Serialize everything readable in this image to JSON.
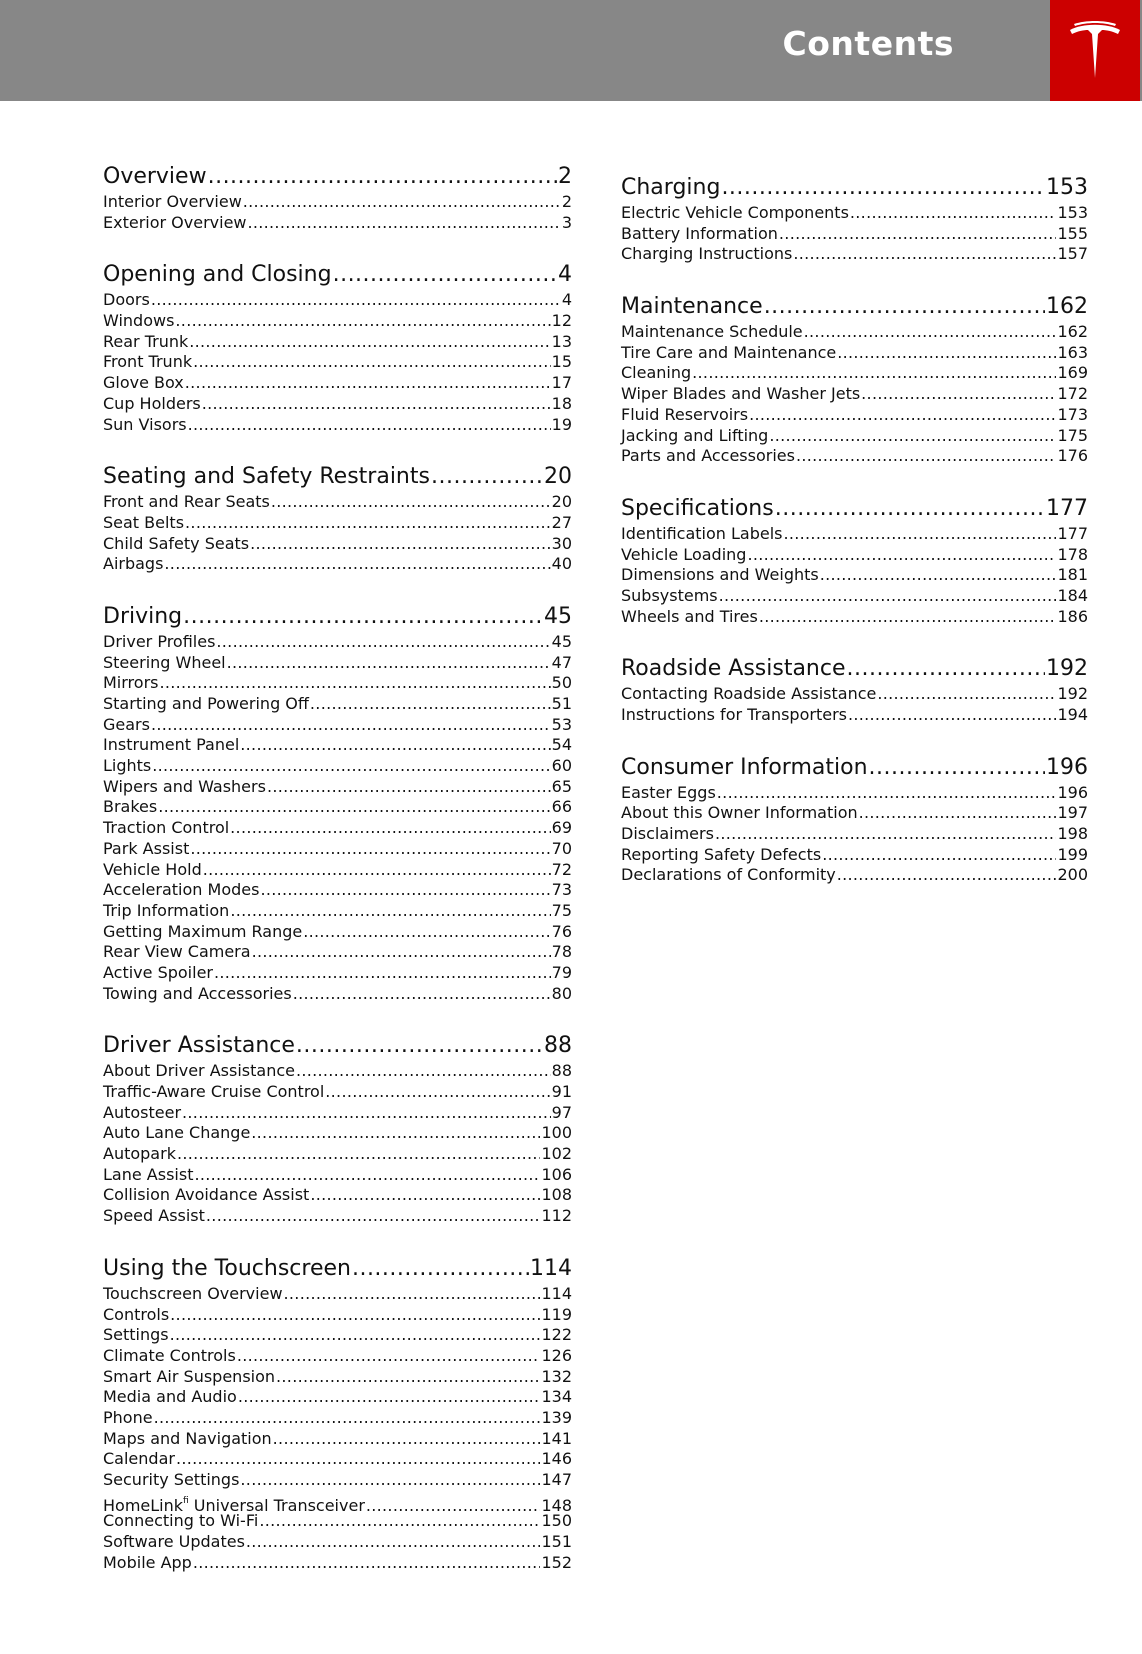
{
  "header": {
    "title": "Contents",
    "logo": "Tesla",
    "accent": "#cc0000",
    "bar_color": "#878787"
  },
  "columns": [
    [
      {
        "title": "Overview",
        "page": "2",
        "entries": [
          {
            "label": "Interior Overview",
            "page": "2"
          },
          {
            "label": "Exterior Overview",
            "page": "3"
          }
        ]
      },
      {
        "title": "Opening and Closing",
        "page": "4",
        "entries": [
          {
            "label": "Doors",
            "page": "4"
          },
          {
            "label": "Windows",
            "page": "12"
          },
          {
            "label": "Rear Trunk",
            "page": "13"
          },
          {
            "label": "Front Trunk",
            "page": "15"
          },
          {
            "label": "Glove Box",
            "page": "17"
          },
          {
            "label": "Cup Holders",
            "page": "18"
          },
          {
            "label": "Sun Visors",
            "page": "19"
          }
        ]
      },
      {
        "title": "Seating and Safety Restraints",
        "page": "20",
        "entries": [
          {
            "label": "Front and Rear Seats",
            "page": "20"
          },
          {
            "label": "Seat Belts",
            "page": "27"
          },
          {
            "label": "Child Safety Seats",
            "page": "30"
          },
          {
            "label": "Airbags",
            "page": "40"
          }
        ]
      },
      {
        "title": "Driving",
        "page": "45",
        "entries": [
          {
            "label": "Driver Profiles",
            "page": "45"
          },
          {
            "label": "Steering Wheel",
            "page": "47"
          },
          {
            "label": "Mirrors",
            "page": "50"
          },
          {
            "label": "Starting and Powering Off",
            "page": "51"
          },
          {
            "label": "Gears",
            "page": "53"
          },
          {
            "label": "Instrument Panel",
            "page": "54"
          },
          {
            "label": "Lights",
            "page": "60"
          },
          {
            "label": "Wipers and Washers",
            "page": "65"
          },
          {
            "label": "Brakes",
            "page": "66"
          },
          {
            "label": "Traction Control",
            "page": "69"
          },
          {
            "label": "Park Assist",
            "page": "70"
          },
          {
            "label": "Vehicle Hold",
            "page": "72"
          },
          {
            "label": "Acceleration Modes",
            "page": "73"
          },
          {
            "label": "Trip Information",
            "page": "75"
          },
          {
            "label": "Getting Maximum Range",
            "page": "76"
          },
          {
            "label": "Rear View Camera",
            "page": "78"
          },
          {
            "label": "Active Spoiler",
            "page": "79"
          },
          {
            "label": "Towing and Accessories",
            "page": "80"
          }
        ]
      },
      {
        "title": "Driver Assistance",
        "page": "88",
        "entries": [
          {
            "label": "About Driver Assistance",
            "page": "88"
          },
          {
            "label": "Traffic-Aware Cruise Control",
            "page": "91"
          },
          {
            "label": "Autosteer",
            "page": "97"
          },
          {
            "label": "Auto Lane Change",
            "page": "100"
          },
          {
            "label": "Autopark",
            "page": "102"
          },
          {
            "label": "Lane Assist",
            "page": "106"
          },
          {
            "label": "Collision Avoidance Assist",
            "page": "108"
          },
          {
            "label": "Speed Assist",
            "page": "112"
          }
        ]
      },
      {
        "title": "Using the Touchscreen",
        "page": "114",
        "entries": [
          {
            "label": "Touchscreen Overview",
            "page": "114"
          },
          {
            "label": "Controls",
            "page": "119"
          },
          {
            "label": "Settings",
            "page": "122"
          },
          {
            "label": "Climate Controls",
            "page": "126"
          },
          {
            "label": "Smart Air Suspension",
            "page": "132"
          },
          {
            "label": "Media and Audio",
            "page": "134"
          },
          {
            "label": "Phone",
            "page": "139"
          },
          {
            "label": "Maps and Navigation",
            "page": "141"
          },
          {
            "label": "Calendar",
            "page": "146"
          },
          {
            "label": "Security Settings",
            "page": "147"
          },
          {
            "label": "HomeLink",
            "sup": "fi",
            "suffix": " Universal Transceiver",
            "page": "148"
          },
          {
            "label": "Connecting to Wi-Fi",
            "page": "150"
          },
          {
            "label": "Software Updates",
            "page": "151"
          },
          {
            "label": "Mobile App",
            "page": "152"
          }
        ]
      }
    ],
    [
      {
        "title": "Charging",
        "page": "153",
        "entries": [
          {
            "label": "Electric Vehicle Components",
            "page": "153"
          },
          {
            "label": "Battery Information",
            "page": "155"
          },
          {
            "label": "Charging Instructions",
            "page": "157"
          }
        ]
      },
      {
        "title": "Maintenance",
        "page": "162",
        "entries": [
          {
            "label": "Maintenance Schedule",
            "page": "162"
          },
          {
            "label": "Tire Care and Maintenance",
            "page": "163"
          },
          {
            "label": "Cleaning",
            "page": "169"
          },
          {
            "label": "Wiper Blades and Washer Jets",
            "page": "172"
          },
          {
            "label": "Fluid Reservoirs",
            "page": "173"
          },
          {
            "label": "Jacking and Lifting",
            "page": "175"
          },
          {
            "label": "Parts and Accessories",
            "page": "176"
          }
        ]
      },
      {
        "title": "Specifications",
        "page": "177",
        "entries": [
          {
            "label": "Identification Labels",
            "page": "177"
          },
          {
            "label": "Vehicle Loading",
            "page": "178"
          },
          {
            "label": "Dimensions and Weights",
            "page": "181"
          },
          {
            "label": "Subsystems",
            "page": "184"
          },
          {
            "label": "Wheels and Tires",
            "page": "186"
          }
        ]
      },
      {
        "title": "Roadside Assistance",
        "page": "192",
        "entries": [
          {
            "label": "Contacting Roadside Assistance",
            "page": "192"
          },
          {
            "label": "Instructions for Transporters",
            "page": "194"
          }
        ]
      },
      {
        "title": "Consumer Information",
        "page": "196",
        "entries": [
          {
            "label": "Easter Eggs",
            "page": "196"
          },
          {
            "label": "About this Owner Information",
            "page": "197"
          },
          {
            "label": "Disclaimers",
            "page": "198"
          },
          {
            "label": "Reporting Safety Defects",
            "page": "199"
          },
          {
            "label": "Declarations of Conformity",
            "page": "200"
          }
        ]
      }
    ]
  ]
}
